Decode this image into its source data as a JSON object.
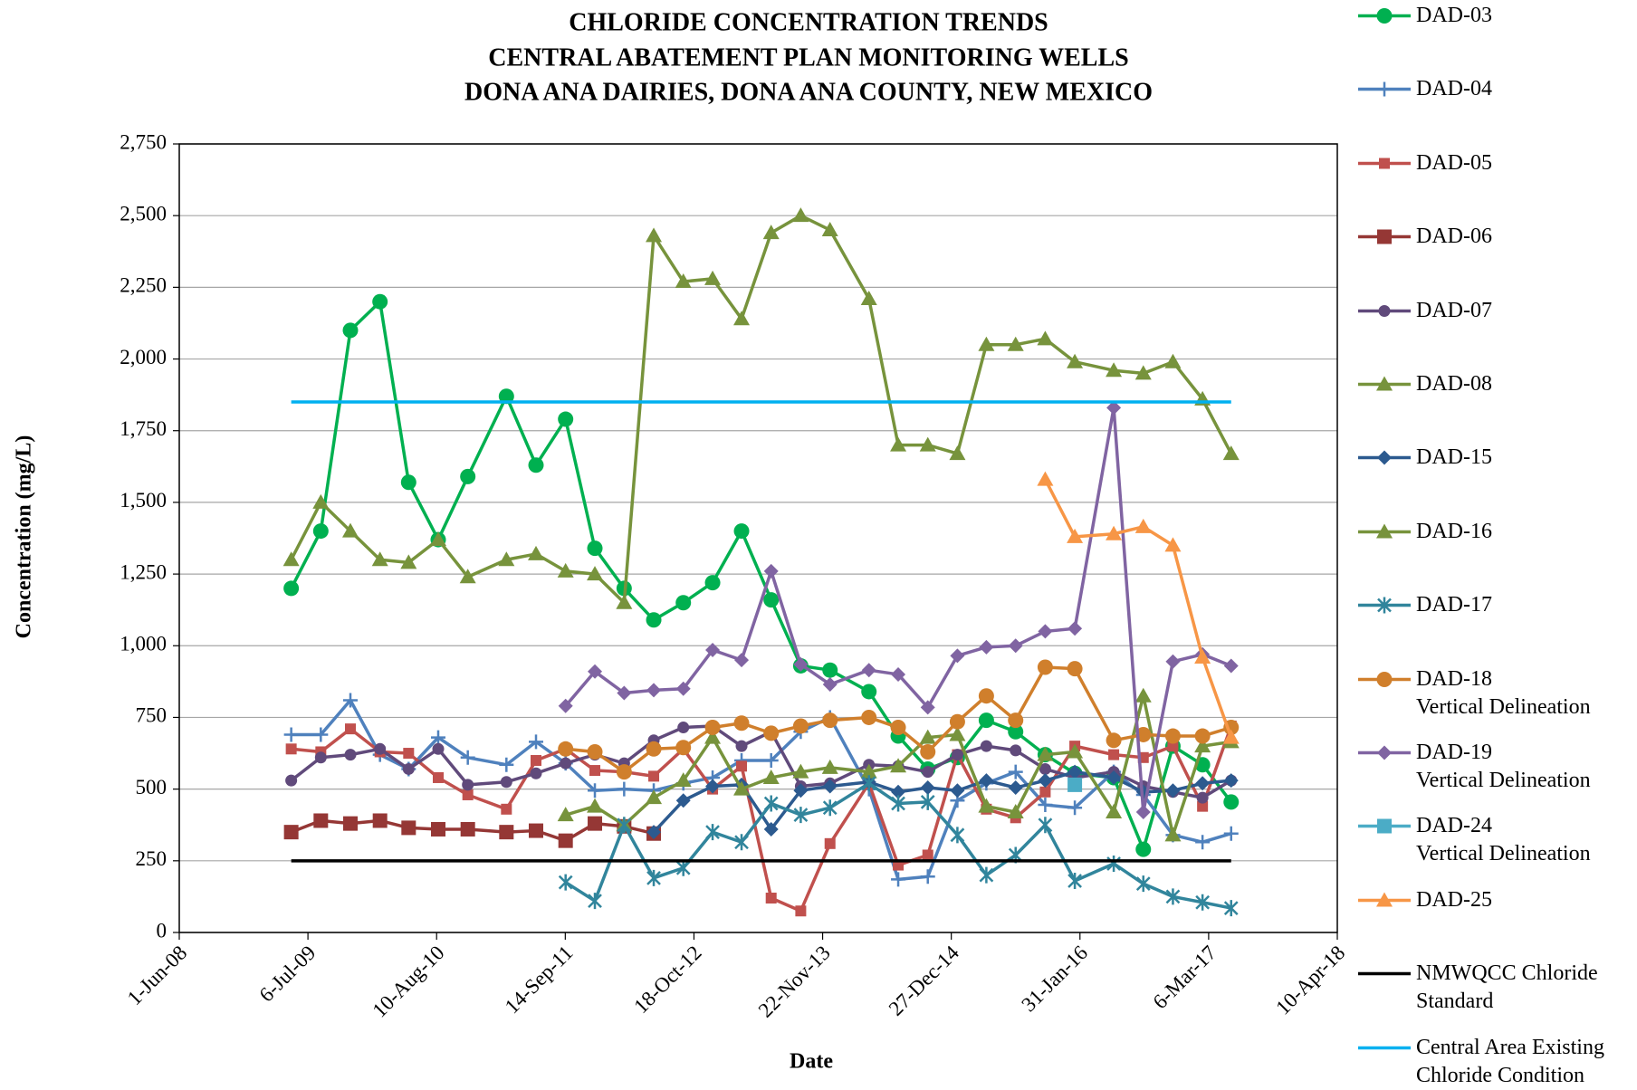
{
  "chart_data": {
    "type": "line",
    "title": [
      "CHLORIDE CONCENTRATION TRENDS",
      "CENTRAL ABATEMENT PLAN MONITORING WELLS",
      "DONA ANA DAIRIES, DONA ANA COUNTY, NEW MEXICO"
    ],
    "x_label": "Date",
    "y_label": "Concentration  (mg/L)",
    "xlim": [
      "2008-06-01",
      "2018-04-10"
    ],
    "xticks": [
      {
        "value": "2008-06-01",
        "label": "1-Jun-08"
      },
      {
        "value": "2009-07-06",
        "label": "6-Jul-09"
      },
      {
        "value": "2010-08-10",
        "label": "10-Aug-10"
      },
      {
        "value": "2011-09-14",
        "label": "14-Sep-11"
      },
      {
        "value": "2012-10-18",
        "label": "18-Oct-12"
      },
      {
        "value": "2013-11-22",
        "label": "22-Nov-13"
      },
      {
        "value": "2014-12-27",
        "label": "27-Dec-14"
      },
      {
        "value": "2016-01-31",
        "label": "31-Jan-16"
      },
      {
        "value": "2017-03-06",
        "label": "6-Mar-17"
      },
      {
        "value": "2018-04-10",
        "label": "10-Apr-18"
      }
    ],
    "ylim": [
      0,
      2750
    ],
    "yticks": [
      0,
      250,
      500,
      750,
      {
        "value": 1000,
        "label": "1,000"
      },
      {
        "value": 1250,
        "label": "1,250"
      },
      {
        "value": 1500,
        "label": "1,500"
      },
      {
        "value": 1750,
        "label": "1,750"
      },
      {
        "value": 2000,
        "label": "2,000"
      },
      {
        "value": 2250,
        "label": "2,250"
      },
      {
        "value": 2500,
        "label": "2,500"
      },
      {
        "value": 2750,
        "label": "2,750"
      }
    ],
    "grid": true,
    "legend": "right",
    "x": [
      "2009-05-15",
      "2009-08-15",
      "2009-11-15",
      "2010-02-15",
      "2010-05-15",
      "2010-08-15",
      "2010-11-15",
      "2011-03-15",
      "2011-06-15",
      "2011-09-15",
      "2011-12-15",
      "2012-03-15",
      "2012-06-15",
      "2012-09-15",
      "2012-12-15",
      "2013-03-15",
      "2013-06-15",
      "2013-09-15",
      "2013-12-15",
      "2014-04-15",
      "2014-07-15",
      "2014-10-15",
      "2015-01-15",
      "2015-04-15",
      "2015-07-15",
      "2015-10-15",
      "2016-01-15",
      "2016-05-15",
      "2016-08-15",
      "2016-11-15",
      "2017-02-15",
      "2017-05-15"
    ],
    "series": [
      {
        "name": "DAD-03",
        "color": "#00b050",
        "marker": "circle",
        "values": [
          1200,
          1400,
          2100,
          2200,
          1570,
          1370,
          1590,
          1870,
          1630,
          1790,
          1340,
          1200,
          1090,
          1150,
          1220,
          1400,
          1160,
          930,
          915,
          840,
          685,
          570,
          610,
          740,
          700,
          620,
          555,
          540,
          290,
          650,
          585,
          455
        ]
      },
      {
        "name": "DAD-04",
        "color": "#4f81bd",
        "marker": "plus",
        "values": [
          690,
          690,
          810,
          620,
          570,
          680,
          610,
          585,
          665,
          590,
          495,
          500,
          495,
          520,
          540,
          600,
          600,
          700,
          750,
          500,
          185,
          195,
          460,
          520,
          560,
          445,
          435,
          560,
          480,
          340,
          315,
          345
        ]
      },
      {
        "name": "DAD-05",
        "color": "#c0504d",
        "marker": "square-small",
        "values": [
          640,
          630,
          710,
          630,
          625,
          540,
          480,
          430,
          600,
          640,
          565,
          560,
          545,
          640,
          500,
          580,
          120,
          75,
          310,
          520,
          235,
          270,
          620,
          430,
          400,
          490,
          650,
          620,
          610,
          650,
          440,
          720
        ]
      },
      {
        "name": "DAD-06",
        "color": "#953735",
        "marker": "square",
        "values": [
          350,
          390,
          380,
          390,
          365,
          360,
          360,
          350,
          355,
          320,
          380,
          370,
          345,
          null,
          null,
          null,
          null,
          null,
          null,
          null,
          null,
          null,
          null,
          null,
          null,
          null,
          null,
          null,
          null,
          null,
          null,
          null
        ]
      },
      {
        "name": "DAD-07",
        "color": "#604a7b",
        "marker": "circle-small",
        "values": [
          530,
          610,
          620,
          640,
          570,
          640,
          515,
          525,
          555,
          590,
          620,
          590,
          670,
          715,
          720,
          650,
          700,
          510,
          520,
          585,
          580,
          560,
          620,
          650,
          635,
          570,
          540,
          560,
          510,
          490,
          470,
          530
        ]
      },
      {
        "name": "DAD-08",
        "color": "#77933c",
        "marker": "triangle",
        "values": [
          1300,
          1500,
          1400,
          1300,
          1290,
          1370,
          1240,
          1300,
          1320,
          1260,
          1250,
          1150,
          2430,
          2270,
          2280,
          2140,
          2440,
          2500,
          2450,
          2210,
          1700,
          1700,
          1670,
          2050,
          2050,
          2070,
          1990,
          1960,
          1950,
          1990,
          1860,
          1670
        ]
      },
      {
        "name": "DAD-15",
        "color": "#2c5a8f",
        "marker": "diamond",
        "values": [
          null,
          null,
          null,
          null,
          null,
          null,
          null,
          null,
          null,
          null,
          null,
          null,
          350,
          460,
          510,
          515,
          360,
          495,
          510,
          525,
          490,
          505,
          495,
          530,
          505,
          530,
          560,
          540,
          490,
          495,
          520,
          530
        ]
      },
      {
        "name": "DAD-16",
        "color": "#77933c",
        "marker": "triangle",
        "values": [
          null,
          null,
          null,
          null,
          null,
          null,
          null,
          null,
          null,
          410,
          440,
          375,
          470,
          530,
          680,
          500,
          540,
          560,
          575,
          560,
          580,
          680,
          690,
          440,
          420,
          620,
          630,
          420,
          825,
          340,
          650,
          665
        ]
      },
      {
        "name": "DAD-17",
        "color": "#31859c",
        "marker": "asterisk",
        "values": [
          null,
          null,
          null,
          null,
          null,
          null,
          null,
          null,
          null,
          175,
          110,
          375,
          190,
          225,
          350,
          315,
          450,
          410,
          435,
          520,
          450,
          455,
          340,
          200,
          270,
          375,
          180,
          240,
          170,
          125,
          105,
          85
        ]
      },
      {
        "name": "DAD-18\nVertical Delineation",
        "color": "#d07f2c",
        "marker": "circle",
        "values": [
          null,
          null,
          null,
          null,
          null,
          null,
          null,
          null,
          null,
          640,
          630,
          560,
          640,
          645,
          715,
          730,
          695,
          720,
          740,
          750,
          715,
          630,
          735,
          825,
          740,
          925,
          920,
          670,
          690,
          685,
          685,
          715
        ]
      },
      {
        "name": "DAD-19\nVertical Delineation",
        "color": "#8064a2",
        "marker": "diamond",
        "values": [
          null,
          null,
          null,
          null,
          null,
          null,
          null,
          null,
          null,
          790,
          910,
          835,
          845,
          850,
          985,
          950,
          1260,
          935,
          865,
          915,
          900,
          785,
          965,
          995,
          1000,
          1050,
          1060,
          1830,
          420,
          945,
          970,
          930
        ]
      },
      {
        "name": "DAD-24\nVertical Delineation",
        "color": "#4bacc6",
        "marker": "square",
        "values": [
          null,
          null,
          null,
          null,
          null,
          null,
          null,
          null,
          null,
          null,
          null,
          null,
          null,
          null,
          null,
          null,
          null,
          null,
          null,
          null,
          null,
          null,
          null,
          null,
          null,
          null,
          515,
          null,
          null,
          null,
          null,
          null
        ]
      },
      {
        "name": "DAD-25",
        "color": "#f79646",
        "marker": "triangle",
        "values": [
          null,
          null,
          null,
          null,
          null,
          null,
          null,
          null,
          null,
          null,
          null,
          null,
          null,
          null,
          null,
          null,
          null,
          null,
          null,
          null,
          null,
          null,
          null,
          null,
          null,
          1580,
          1380,
          1390,
          1415,
          1350,
          960,
          680
        ]
      },
      {
        "name": "NMWQCC Chloride\nStandard",
        "color": "#000000",
        "marker": "none",
        "x": [
          "2009-05-15",
          "2017-05-15"
        ],
        "values": [
          250,
          250
        ]
      },
      {
        "name": "Central Area Existing\nChloride Condition",
        "color": "#00b0f0",
        "marker": "none",
        "x": [
          "2009-05-15",
          "2017-05-15"
        ],
        "values": [
          1850,
          1850
        ]
      }
    ]
  }
}
